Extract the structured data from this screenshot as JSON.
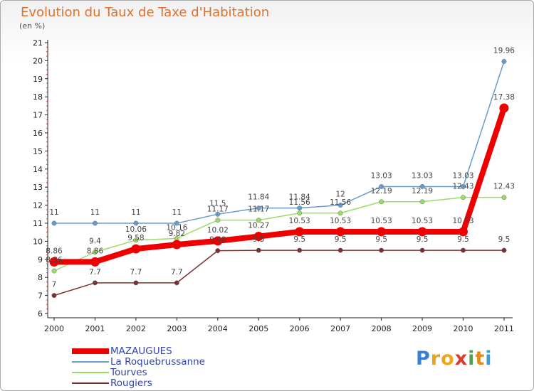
{
  "title": "Evolution du Taux de Taxe d'Habitation",
  "unit": "(en %)",
  "logo": {
    "text": "Proxiti",
    "letters": [
      "P",
      "r",
      "o",
      "x",
      "i",
      "t",
      "i"
    ],
    "colors": [
      "#3a7fd5",
      "#e8a21b",
      "#f0a51a",
      "#d83c2f",
      "#4aa64a",
      "#e88a1b",
      "#3a9fd5"
    ]
  },
  "chart_data": {
    "type": "line",
    "title": "Evolution du Taux de Taxe d'Habitation",
    "ylabel": "(en %)",
    "xlabel": "",
    "categories": [
      "2000",
      "2001",
      "2002",
      "2003",
      "2004",
      "2005",
      "2006",
      "2007",
      "2008",
      "2009",
      "2010",
      "2011"
    ],
    "ylim": [
      6,
      21
    ],
    "yticks": [
      6,
      7,
      8,
      9,
      10,
      11,
      12,
      13,
      14,
      15,
      16,
      17,
      18,
      19,
      20,
      21
    ],
    "grid": false,
    "legend_position": "bottom-left",
    "series": [
      {
        "name": "MAZAUGUES",
        "color": "#ee0000",
        "width": 8,
        "values": [
          8.86,
          8.86,
          9.58,
          9.82,
          10.02,
          10.27,
          10.53,
          10.53,
          10.53,
          10.53,
          10.53,
          17.38
        ],
        "labels": [
          "8.86",
          "8.86",
          "9.58",
          "9.82",
          "10.02",
          "10.27",
          "10.53",
          "10.53",
          "10.53",
          "10.53",
          "10.53",
          "17.38"
        ]
      },
      {
        "name": "La Roquebrussanne",
        "color": "#6a9cc9",
        "width": 1.5,
        "values": [
          11,
          11,
          11,
          11,
          11.5,
          11.84,
          11.84,
          12,
          13.03,
          13.03,
          13.03,
          19.96
        ],
        "labels": [
          "11",
          "11",
          "11",
          "11",
          "11.5",
          "11.84",
          "11.84",
          "12",
          "13.03",
          "13.03",
          "13.03",
          "19.96"
        ]
      },
      {
        "name": "Tourves",
        "color": "#99dd66",
        "width": 1.5,
        "values": [
          8.36,
          9.4,
          10.06,
          10.16,
          11.17,
          11.17,
          11.56,
          11.56,
          12.19,
          12.19,
          12.43,
          12.43
        ],
        "labels": [
          "8.36",
          "9.4",
          "10.06",
          "10.16",
          "11.17",
          "11.17",
          "11.56",
          "11.56",
          "12.19",
          "12.19",
          "12.43",
          "12.43"
        ]
      },
      {
        "name": "Rougiers",
        "color": "#7a3030",
        "width": 1.5,
        "values": [
          7,
          7.7,
          7.7,
          7.7,
          9.48,
          9.5,
          9.5,
          9.5,
          9.5,
          9.5,
          9.5,
          9.5
        ],
        "labels": [
          "7",
          "7.7",
          "7.7",
          "7.7",
          "9.48",
          "9.5",
          "9.5",
          "9.5",
          "9.5",
          "9.5",
          "9.5",
          "9.5"
        ]
      }
    ]
  }
}
